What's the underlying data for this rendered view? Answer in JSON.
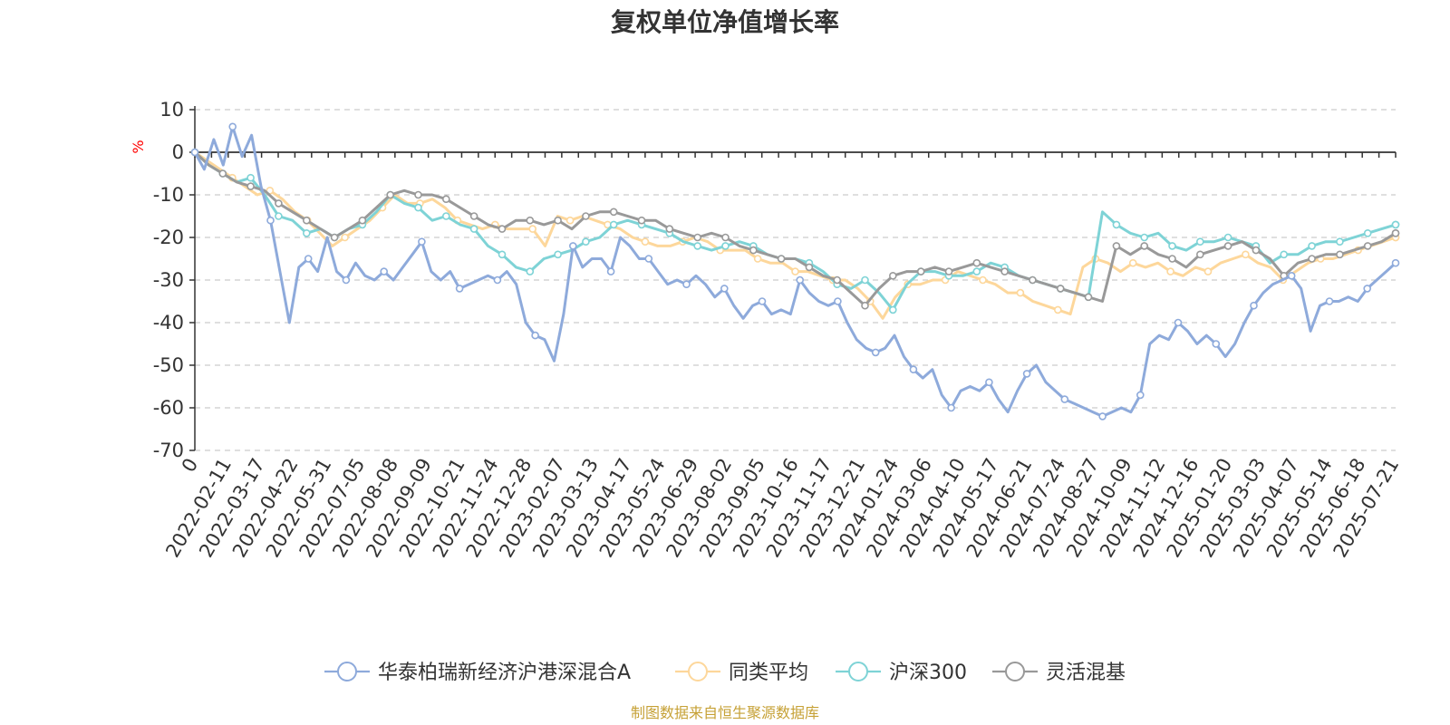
{
  "chart_data": {
    "type": "line",
    "title": "复权单位净值增长率",
    "ylabel": "%",
    "ylim": [
      -70,
      10
    ],
    "yticks": [
      10,
      0,
      -10,
      -20,
      -30,
      -40,
      -50,
      -60,
      -70
    ],
    "xticks": [
      "0",
      "2022-02-11",
      "2022-03-17",
      "2022-04-22",
      "2022-05-31",
      "2022-07-05",
      "2022-08-08",
      "2022-09-09",
      "2022-10-21",
      "2022-11-24",
      "2022-12-28",
      "2023-02-07",
      "2023-03-13",
      "2023-04-17",
      "2023-05-24",
      "2023-06-29",
      "2023-08-02",
      "2023-09-05",
      "2023-10-16",
      "2023-11-17",
      "2023-12-21",
      "2024-01-24",
      "2024-03-06",
      "2024-04-10",
      "2024-05-17",
      "2024-06-21",
      "2024-07-24",
      "2024-08-27",
      "2024-10-09",
      "2024-11-12",
      "2024-12-16",
      "2025-01-20",
      "2025-03-03",
      "2025-04-07",
      "2025-05-14",
      "2025-06-18",
      "2025-07-21"
    ],
    "grid": true,
    "legend_position": "bottom",
    "source": "制图数据来自恒生聚源数据库",
    "series": [
      {
        "name": "华泰柏瑞新经济沪港深混合A",
        "color": "#8eaadb",
        "values": [
          0,
          -4,
          3,
          -3,
          6,
          -1,
          4,
          -8,
          -16,
          -28,
          -40,
          -27,
          -25,
          -28,
          -20,
          -28,
          -30,
          -26,
          -29,
          -30,
          -28,
          -30,
          -27,
          -24,
          -21,
          -28,
          -30,
          -28,
          -32,
          -31,
          -30,
          -29,
          -30,
          -28,
          -31,
          -40,
          -43,
          -44,
          -49,
          -38,
          -22,
          -27,
          -25,
          -25,
          -28,
          -20,
          -22,
          -25,
          -25,
          -28,
          -31,
          -30,
          -31,
          -29,
          -31,
          -34,
          -32,
          -36,
          -39,
          -36,
          -35,
          -38,
          -37,
          -38,
          -30,
          -33,
          -35,
          -36,
          -35,
          -40,
          -44,
          -46,
          -47,
          -46,
          -43,
          -48,
          -51,
          -53,
          -51,
          -57,
          -60,
          -56,
          -55,
          -56,
          -54,
          -58,
          -61,
          -56,
          -52,
          -50,
          -54,
          -56,
          -58,
          -59,
          -60,
          -61,
          -62,
          -61,
          -60,
          -61,
          -57,
          -45,
          -43,
          -44,
          -40,
          -42,
          -45,
          -43,
          -45,
          -48,
          -45,
          -40,
          -36,
          -33,
          -31,
          -30,
          -29,
          -32,
          -42,
          -36,
          -35,
          -35,
          -34,
          -35,
          -32,
          -30,
          -28,
          -26
        ]
      },
      {
        "name": "同类平均",
        "color": "#fdd79b",
        "values": [
          0,
          -2,
          -4,
          -6,
          -8,
          -10,
          -9,
          -11,
          -14,
          -16,
          -19,
          -22,
          -20,
          -18,
          -16,
          -13,
          -10,
          -12,
          -12,
          -11,
          -13,
          -16,
          -17,
          -18,
          -17,
          -18,
          -18,
          -18,
          -22,
          -15,
          -16,
          -15,
          -16,
          -17,
          -18,
          -20,
          -21,
          -22,
          -22,
          -21,
          -20,
          -21,
          -23,
          -23,
          -23,
          -25,
          -26,
          -26,
          -28,
          -28,
          -29,
          -30,
          -30,
          -32,
          -35,
          -39,
          -34,
          -31,
          -31,
          -30,
          -30,
          -28,
          -29,
          -30,
          -31,
          -33,
          -33,
          -35,
          -36,
          -37,
          -38,
          -27,
          -25,
          -26,
          -28,
          -26,
          -27,
          -26,
          -28,
          -29,
          -27,
          -28,
          -26,
          -25,
          -24,
          -26,
          -27,
          -30,
          -28,
          -26,
          -25,
          -25,
          -24,
          -23,
          -22,
          -21,
          -20
        ]
      },
      {
        "name": "沪深300",
        "color": "#7ed3d6",
        "values": [
          0,
          -3,
          -5,
          -7,
          -6,
          -10,
          -15,
          -16,
          -19,
          -18,
          -20,
          -18,
          -17,
          -14,
          -10,
          -12,
          -13,
          -16,
          -15,
          -17,
          -18,
          -22,
          -24,
          -27,
          -28,
          -25,
          -24,
          -23,
          -21,
          -20,
          -17,
          -16,
          -17,
          -18,
          -19,
          -21,
          -22,
          -23,
          -22,
          -21,
          -22,
          -24,
          -25,
          -25,
          -26,
          -28,
          -31,
          -32,
          -30,
          -33,
          -37,
          -31,
          -28,
          -28,
          -29,
          -29,
          -28,
          -26,
          -27,
          -29,
          -30,
          -31,
          -32,
          -33,
          -34,
          -14,
          -17,
          -19,
          -20,
          -19,
          -22,
          -23,
          -21,
          -21,
          -20,
          -21,
          -22,
          -26,
          -24,
          -24,
          -22,
          -21,
          -21,
          -20,
          -19,
          -18,
          -17
        ]
      },
      {
        "name": "灵活混基",
        "color": "#999999",
        "values": [
          0,
          -3,
          -5,
          -7,
          -8,
          -9,
          -12,
          -14,
          -16,
          -18,
          -20,
          -18,
          -16,
          -13,
          -10,
          -9,
          -10,
          -10,
          -11,
          -13,
          -15,
          -17,
          -18,
          -16,
          -16,
          -17,
          -16,
          -18,
          -15,
          -14,
          -14,
          -15,
          -16,
          -16,
          -18,
          -19,
          -20,
          -19,
          -20,
          -22,
          -23,
          -24,
          -25,
          -25,
          -27,
          -29,
          -30,
          -33,
          -36,
          -32,
          -29,
          -28,
          -28,
          -27,
          -28,
          -27,
          -26,
          -27,
          -28,
          -29,
          -30,
          -31,
          -32,
          -33,
          -34,
          -35,
          -22,
          -24,
          -22,
          -24,
          -25,
          -27,
          -24,
          -23,
          -22,
          -21,
          -23,
          -25,
          -29,
          -26,
          -25,
          -24,
          -24,
          -23,
          -22,
          -21,
          -19
        ]
      }
    ]
  }
}
